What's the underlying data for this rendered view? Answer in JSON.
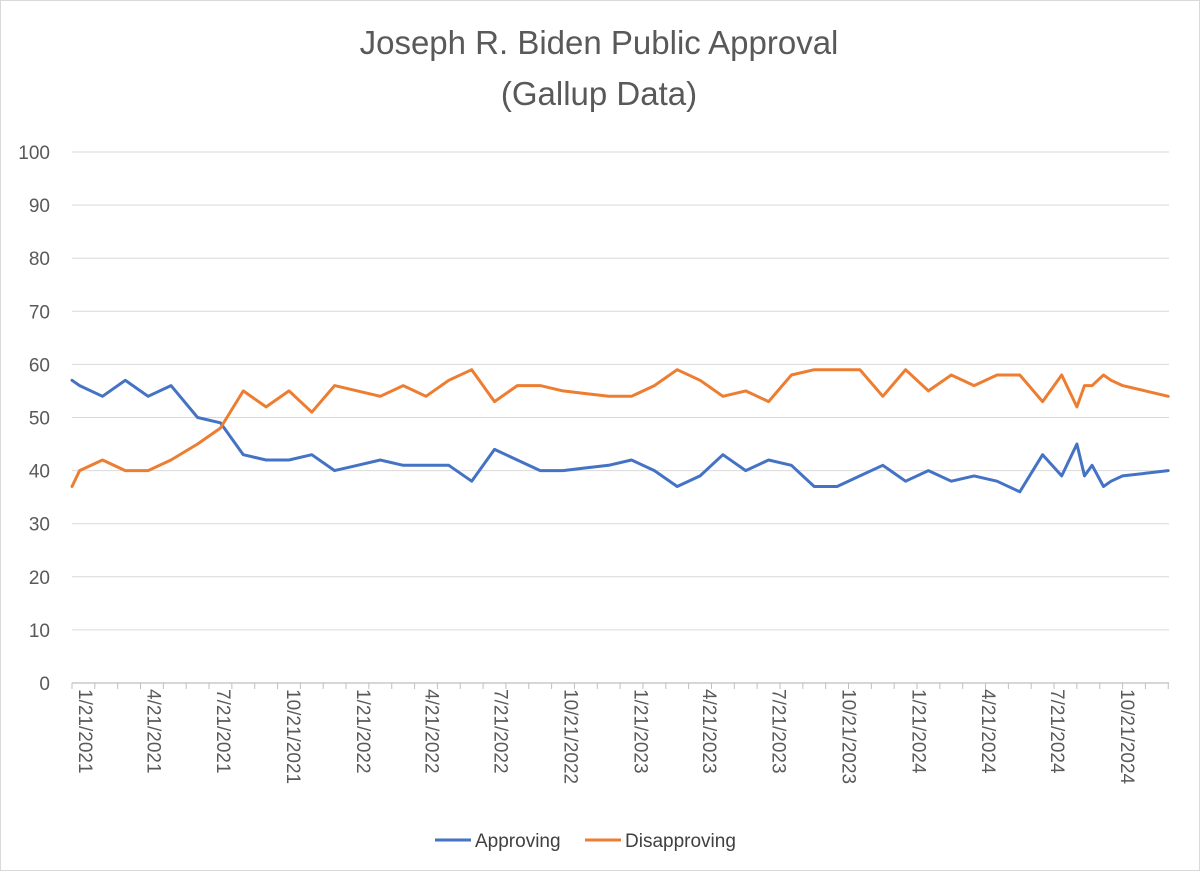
{
  "chart_data": {
    "type": "line",
    "title": [
      "Joseph R. Biden Public Approval",
      "(Gallup Data)"
    ],
    "xlabel": "",
    "ylabel": "",
    "ylim": [
      0,
      100
    ],
    "yticks": [
      0,
      10,
      20,
      30,
      40,
      50,
      60,
      70,
      80,
      90,
      100
    ],
    "grid": true,
    "legend_position": "bottom",
    "x_range_days": [
      0,
      1441
    ],
    "x_tick_labels": [
      {
        "label": "1/21/2021",
        "day": 0
      },
      {
        "label": "4/21/2021",
        "day": 90
      },
      {
        "label": "7/21/2021",
        "day": 181
      },
      {
        "label": "10/21/2021",
        "day": 273
      },
      {
        "label": "1/21/2022",
        "day": 365
      },
      {
        "label": "4/21/2022",
        "day": 455
      },
      {
        "label": "7/21/2022",
        "day": 546
      },
      {
        "label": "10/21/2022",
        "day": 638
      },
      {
        "label": "1/21/2023",
        "day": 730
      },
      {
        "label": "4/21/2023",
        "day": 820
      },
      {
        "label": "7/21/2023",
        "day": 911
      },
      {
        "label": "10/21/2023",
        "day": 1003
      },
      {
        "label": "1/21/2024",
        "day": 1095
      },
      {
        "label": "4/21/2024",
        "day": 1186
      },
      {
        "label": "7/21/2024",
        "day": 1277
      },
      {
        "label": "10/21/2024",
        "day": 1369
      }
    ],
    "x_days": [
      0,
      10,
      40,
      70,
      100,
      130,
      165,
      195,
      225,
      255,
      285,
      315,
      345,
      375,
      405,
      435,
      465,
      495,
      525,
      555,
      585,
      615,
      645,
      675,
      705,
      735,
      765,
      795,
      825,
      855,
      885,
      915,
      945,
      975,
      1005,
      1035,
      1065,
      1095,
      1125,
      1155,
      1185,
      1215,
      1245,
      1275,
      1300,
      1320,
      1330,
      1340,
      1355,
      1365,
      1380,
      1410,
      1440
    ],
    "series": [
      {
        "name": "Approving",
        "color": "#4472c4",
        "values": [
          57,
          56,
          54,
          57,
          54,
          56,
          50,
          49,
          43,
          42,
          42,
          43,
          40,
          41,
          42,
          41,
          41,
          41,
          38,
          44,
          42,
          40,
          40,
          40.5,
          41,
          42,
          40,
          37,
          39,
          43,
          40,
          42,
          41,
          37,
          37,
          39,
          41,
          38,
          40,
          38,
          39,
          38,
          36,
          43,
          39,
          45,
          39,
          41,
          37,
          38,
          39,
          39.5,
          40
        ]
      },
      {
        "name": "Disapproving",
        "color": "#ed7d31",
        "values": [
          37,
          40,
          42,
          40,
          40,
          42,
          45,
          48,
          55,
          52,
          55,
          51,
          56,
          55,
          54,
          56,
          54,
          57,
          59,
          53,
          56,
          56,
          55,
          54.5,
          54,
          54,
          56,
          59,
          57,
          54,
          55,
          53,
          58,
          59,
          59,
          59,
          54,
          59,
          55,
          58,
          56,
          58,
          58,
          53,
          58,
          52,
          56,
          56,
          58,
          57,
          56,
          55,
          54
        ]
      }
    ]
  }
}
